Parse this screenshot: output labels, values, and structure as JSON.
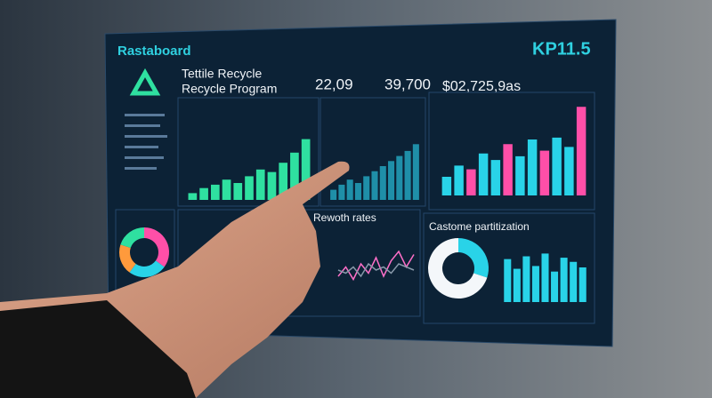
{
  "header": {
    "title": "Rastaboard",
    "kpi": "KP11.5"
  },
  "program": {
    "line1": "Tettile Recycle",
    "line2": "Recycle Program"
  },
  "stats": [
    "22,09",
    "39,700",
    "$02,725,9as"
  ],
  "chart_data": [
    {
      "type": "bar",
      "values": [
        8,
        14,
        18,
        24,
        20,
        28,
        36,
        33,
        44,
        56,
        72
      ],
      "color": "#2fe0a0",
      "ylim": [
        0,
        100
      ]
    },
    {
      "type": "bar",
      "values": [
        12,
        18,
        24,
        20,
        28,
        34,
        40,
        46,
        52,
        58,
        66
      ],
      "color": "#1f8fa8",
      "ylim": [
        0,
        100
      ]
    },
    {
      "type": "bar",
      "values": [
        20,
        32,
        28,
        45,
        38,
        55,
        42,
        60,
        48,
        62,
        52,
        95
      ],
      "colors": [
        "#29d3e8",
        "#29d3e8",
        "#ff4fa8",
        "#29d3e8",
        "#29d3e8",
        "#ff4fa8",
        "#29d3e8",
        "#29d3e8",
        "#ff4fa8",
        "#29d3e8",
        "#29d3e8",
        "#ff4fa8"
      ],
      "ylim": [
        0,
        100
      ]
    },
    {
      "type": "line",
      "title": "Rewoth rates",
      "series": [
        {
          "color": "#ff6fc8",
          "values": [
            30,
            45,
            25,
            50,
            35,
            60,
            30,
            55,
            70,
            45,
            65
          ]
        },
        {
          "color": "#8899aa",
          "values": [
            40,
            35,
            45,
            30,
            50,
            40,
            45,
            35,
            50,
            45,
            40
          ]
        }
      ],
      "ylim": [
        0,
        100
      ]
    },
    {
      "type": "pie",
      "values": [
        30,
        70
      ],
      "colors": [
        "#29d3e8",
        "#f4f7fa"
      ]
    },
    {
      "type": "bar",
      "title": "Castome partitization",
      "values": [
        62,
        48,
        66,
        52,
        70,
        44,
        64,
        58,
        50
      ],
      "color": "#29d3e8",
      "ylim": [
        0,
        100
      ]
    },
    {
      "type": "pie",
      "values": [
        35,
        25,
        20,
        20
      ],
      "colors": [
        "#ff4fa8",
        "#29d3e8",
        "#ff9a3c",
        "#2fe0a0"
      ]
    }
  ]
}
